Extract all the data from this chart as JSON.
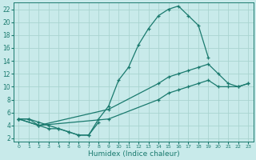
{
  "xlabel": "Humidex (Indice chaleur)",
  "ylabel": "",
  "bg_color": "#c8eaea",
  "grid_color": "#aad4d0",
  "line_color": "#1a7a6e",
  "xlim": [
    -0.5,
    23.5
  ],
  "ylim": [
    1.5,
    23
  ],
  "xticks": [
    0,
    1,
    2,
    3,
    4,
    5,
    6,
    7,
    8,
    9,
    10,
    11,
    12,
    13,
    14,
    15,
    16,
    17,
    18,
    19,
    20,
    21,
    22,
    23
  ],
  "yticks": [
    2,
    4,
    6,
    8,
    10,
    12,
    14,
    16,
    18,
    20,
    22
  ],
  "line1_x": [
    0,
    1,
    2,
    3,
    4,
    5,
    6,
    7,
    8,
    9,
    10,
    11,
    12,
    13,
    14,
    15,
    16,
    17,
    18,
    19
  ],
  "line1_y": [
    5,
    5,
    4.5,
    4,
    3.5,
    3,
    2.5,
    2.5,
    5,
    7,
    11,
    13,
    16.5,
    19,
    21,
    22,
    22.5,
    21,
    19.5,
    14.5
  ],
  "line2_x": [
    0,
    1,
    2,
    3,
    4,
    5,
    6,
    7,
    8
  ],
  "line2_y": [
    5,
    5,
    4,
    3.5,
    3.5,
    3,
    2.5,
    2.5,
    4.5
  ],
  "line3_x": [
    0,
    2,
    9,
    14,
    15,
    16,
    17,
    18,
    19,
    20,
    21,
    22,
    23
  ],
  "line3_y": [
    5,
    4,
    6.5,
    10.5,
    11.5,
    12,
    12.5,
    13,
    13.5,
    12,
    10.5,
    10,
    10.5
  ],
  "line4_x": [
    0,
    2,
    9,
    14,
    15,
    16,
    17,
    18,
    19,
    20,
    21,
    22,
    23
  ],
  "line4_y": [
    5,
    4,
    5,
    8,
    9,
    9.5,
    10,
    10.5,
    11,
    10,
    10,
    10,
    10.5
  ]
}
